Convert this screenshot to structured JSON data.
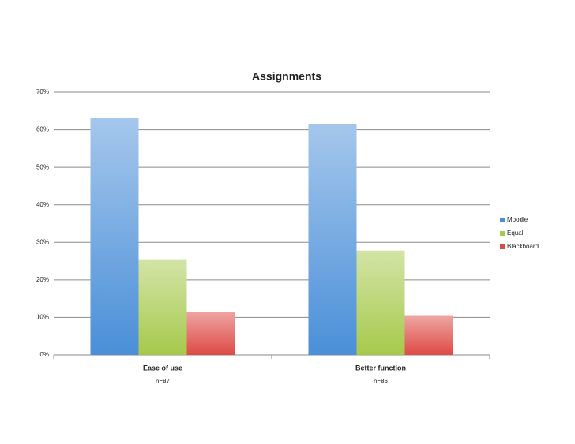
{
  "chart_data": {
    "type": "bar",
    "title": "Assignments",
    "categories": [
      "Ease of use",
      "Better function"
    ],
    "category_notes": [
      "n=87",
      "n=86"
    ],
    "series": [
      {
        "name": "Moodle",
        "color": "#4a8fd8",
        "values": [
          63.2,
          61.6
        ]
      },
      {
        "name": "Equal",
        "color": "#a6c94c",
        "values": [
          25.3,
          27.8
        ]
      },
      {
        "name": "Blackboard",
        "color": "#dd4a44",
        "values": [
          11.5,
          10.4
        ]
      }
    ],
    "ylim": [
      0,
      70
    ],
    "yticks": [
      {
        "value": 0,
        "label": "0%"
      },
      {
        "value": 10,
        "label": "10%"
      },
      {
        "value": 20,
        "label": "20%"
      },
      {
        "value": 30,
        "label": "30%"
      },
      {
        "value": 40,
        "label": "40%"
      },
      {
        "value": 50,
        "label": "50%"
      },
      {
        "value": 60,
        "label": "60%"
      },
      {
        "value": 70,
        "label": "70%"
      }
    ],
    "grid": true,
    "legend": "right"
  }
}
